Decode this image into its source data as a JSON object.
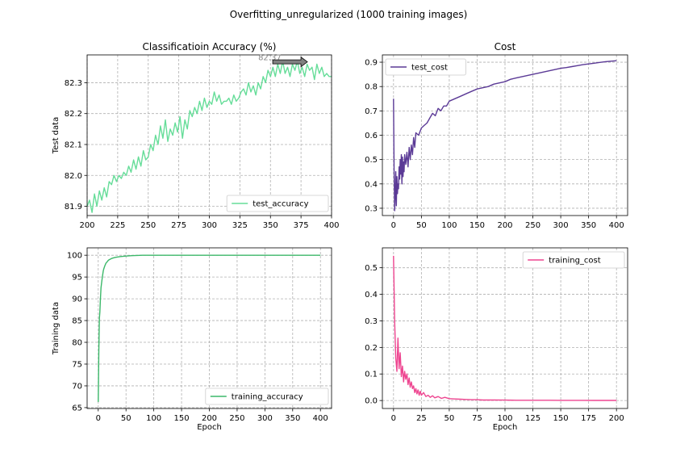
{
  "figure": {
    "suptitle": "Overfitting_unregularized (1000 training images)"
  },
  "chart_data": [
    {
      "id": "accuracy_test",
      "type": "line",
      "title": "Classificatioin Accuracy (%)",
      "xlabel": "",
      "ylabel": "Test data",
      "xlim": [
        200,
        400
      ],
      "ylim": [
        81.87,
        82.39
      ],
      "xticks": [
        200,
        225,
        250,
        275,
        300,
        325,
        350,
        375,
        400
      ],
      "yticks": [
        81.9,
        82.0,
        82.1,
        82.2,
        82.3
      ],
      "ytick_labels": [
        "81.9",
        "82.0",
        "82.1",
        "82.2",
        "82.3"
      ],
      "grid": true,
      "legend": "lower right",
      "annotation": {
        "text": "82.37",
        "x": 371,
        "y": 82.37,
        "arrow": true
      },
      "series": [
        {
          "name": "test_accuracy",
          "color": "#66dd99",
          "x": [
            200,
            202,
            204,
            206,
            208,
            210,
            212,
            214,
            216,
            218,
            220,
            222,
            224,
            226,
            228,
            230,
            232,
            234,
            236,
            238,
            240,
            242,
            244,
            246,
            248,
            250,
            252,
            254,
            256,
            258,
            260,
            262,
            264,
            266,
            268,
            270,
            272,
            274,
            276,
            278,
            280,
            282,
            284,
            286,
            288,
            290,
            292,
            294,
            296,
            298,
            300,
            302,
            304,
            306,
            308,
            310,
            312,
            314,
            316,
            318,
            320,
            322,
            324,
            326,
            328,
            330,
            332,
            334,
            336,
            338,
            340,
            342,
            344,
            346,
            348,
            350,
            352,
            354,
            356,
            358,
            360,
            362,
            364,
            366,
            368,
            370,
            372,
            374,
            376,
            378,
            380,
            382,
            384,
            386,
            388,
            390,
            392,
            394,
            396,
            398,
            400
          ],
          "values": [
            81.9,
            81.92,
            81.88,
            81.94,
            81.9,
            81.95,
            81.92,
            81.96,
            81.93,
            81.98,
            81.97,
            82.0,
            81.98,
            82.0,
            81.99,
            82.01,
            82.0,
            82.03,
            82.01,
            82.05,
            82.02,
            82.06,
            82.03,
            82.08,
            82.05,
            82.06,
            82.1,
            82.08,
            82.13,
            82.1,
            82.16,
            82.12,
            82.18,
            82.11,
            82.15,
            82.13,
            82.17,
            82.14,
            82.19,
            82.12,
            82.18,
            82.15,
            82.21,
            82.19,
            82.22,
            82.2,
            82.24,
            82.21,
            82.25,
            82.22,
            82.24,
            82.23,
            82.27,
            82.24,
            82.26,
            82.23,
            82.24,
            82.24,
            82.25,
            82.23,
            82.26,
            82.24,
            82.25,
            82.27,
            82.28,
            82.26,
            82.3,
            82.27,
            82.29,
            82.26,
            82.3,
            82.28,
            82.32,
            82.3,
            82.34,
            82.32,
            82.35,
            82.32,
            82.36,
            82.33,
            82.37,
            82.33,
            82.35,
            82.32,
            82.36,
            82.34,
            82.37,
            82.33,
            82.35,
            82.32,
            82.36,
            82.34,
            82.35,
            82.31,
            82.36,
            82.33,
            82.35,
            82.32,
            82.33,
            82.32,
            82.32
          ]
        }
      ]
    },
    {
      "id": "cost_test",
      "type": "line",
      "title": "Cost",
      "xlabel": "",
      "ylabel": "",
      "xlim": [
        -20,
        420
      ],
      "ylim": [
        0.27,
        0.93
      ],
      "xticks": [
        0,
        50,
        100,
        150,
        200,
        250,
        300,
        350,
        400
      ],
      "yticks": [
        0.3,
        0.4,
        0.5,
        0.6,
        0.7,
        0.8,
        0.9
      ],
      "ytick_labels": [
        "0.3",
        "0.4",
        "0.5",
        "0.6",
        "0.7",
        "0.8",
        "0.9"
      ],
      "grid": true,
      "legend": "upper left",
      "series": [
        {
          "name": "test_cost",
          "color": "#5b3a96",
          "x": [
            0,
            1,
            2,
            3,
            4,
            5,
            6,
            7,
            8,
            9,
            10,
            11,
            12,
            13,
            14,
            15,
            16,
            17,
            18,
            19,
            20,
            22,
            24,
            26,
            28,
            30,
            32,
            34,
            36,
            38,
            40,
            45,
            50,
            55,
            60,
            65,
            70,
            75,
            80,
            85,
            90,
            95,
            100,
            110,
            120,
            130,
            140,
            150,
            160,
            170,
            180,
            190,
            200,
            210,
            220,
            230,
            240,
            250,
            260,
            270,
            280,
            290,
            300,
            310,
            320,
            330,
            340,
            350,
            360,
            370,
            380,
            390,
            400
          ],
          "values": [
            0.75,
            0.46,
            0.29,
            0.35,
            0.45,
            0.31,
            0.43,
            0.36,
            0.4,
            0.38,
            0.47,
            0.42,
            0.5,
            0.44,
            0.52,
            0.4,
            0.51,
            0.43,
            0.49,
            0.45,
            0.52,
            0.48,
            0.53,
            0.47,
            0.55,
            0.5,
            0.56,
            0.52,
            0.59,
            0.55,
            0.61,
            0.6,
            0.63,
            0.64,
            0.65,
            0.67,
            0.69,
            0.68,
            0.71,
            0.7,
            0.72,
            0.72,
            0.74,
            0.75,
            0.76,
            0.77,
            0.78,
            0.79,
            0.795,
            0.8,
            0.81,
            0.815,
            0.82,
            0.83,
            0.835,
            0.84,
            0.845,
            0.85,
            0.855,
            0.86,
            0.865,
            0.87,
            0.875,
            0.878,
            0.882,
            0.886,
            0.89,
            0.893,
            0.896,
            0.899,
            0.902,
            0.904,
            0.906
          ]
        }
      ]
    },
    {
      "id": "accuracy_train",
      "type": "line",
      "title": "",
      "xlabel": "Epoch",
      "ylabel": "Training data",
      "xlim": [
        -20,
        420
      ],
      "ylim": [
        64.8,
        101.7
      ],
      "xticks": [
        0,
        50,
        100,
        150,
        200,
        250,
        300,
        350,
        400
      ],
      "yticks": [
        65,
        70,
        75,
        80,
        85,
        90,
        95,
        100
      ],
      "ytick_labels": [
        "65",
        "70",
        "75",
        "80",
        "85",
        "90",
        "95",
        "100"
      ],
      "grid": true,
      "legend": "lower right",
      "series": [
        {
          "name": "training_accuracy",
          "color": "#3cb86a",
          "x": [
            0,
            1,
            2,
            3,
            4,
            5,
            6,
            7,
            8,
            9,
            10,
            12,
            14,
            16,
            18,
            20,
            25,
            30,
            35,
            40,
            50,
            60,
            70,
            80,
            90,
            100,
            150,
            200,
            250,
            300,
            350,
            400
          ],
          "values": [
            66.3,
            78.0,
            85.5,
            87.0,
            90.0,
            92.5,
            93.6,
            94.6,
            95.5,
            96.4,
            96.9,
            97.6,
            98.2,
            98.5,
            98.8,
            99.0,
            99.3,
            99.5,
            99.6,
            99.7,
            99.8,
            99.9,
            99.95,
            100,
            100,
            100,
            100,
            100,
            100,
            100,
            100,
            100
          ]
        }
      ]
    },
    {
      "id": "cost_train",
      "type": "line",
      "title": "",
      "xlabel": "Epoch",
      "ylabel": "",
      "xlim": [
        -10,
        210
      ],
      "ylim": [
        -0.03,
        0.575
      ],
      "xticks": [
        0,
        25,
        50,
        75,
        100,
        125,
        150,
        175,
        200
      ],
      "yticks": [
        0.0,
        0.1,
        0.2,
        0.3,
        0.4,
        0.5
      ],
      "ytick_labels": [
        "0.0",
        "0.1",
        "0.2",
        "0.3",
        "0.4",
        "0.5"
      ],
      "grid": true,
      "legend": "upper right",
      "series": [
        {
          "name": "training_cost",
          "color": "#ee4590",
          "x": [
            0,
            1,
            2,
            3,
            4,
            5,
            6,
            7,
            8,
            9,
            10,
            11,
            12,
            13,
            14,
            15,
            16,
            17,
            18,
            19,
            20,
            21,
            22,
            23,
            24,
            25,
            27,
            29,
            31,
            33,
            35,
            37,
            40,
            43,
            46,
            50,
            55,
            60,
            65,
            70,
            75,
            80,
            90,
            100,
            110,
            120,
            130,
            140,
            150,
            160,
            170,
            180,
            190,
            200
          ],
          "values": [
            0.545,
            0.3,
            0.16,
            0.11,
            0.235,
            0.12,
            0.18,
            0.09,
            0.13,
            0.07,
            0.11,
            0.08,
            0.1,
            0.06,
            0.085,
            0.05,
            0.07,
            0.045,
            0.055,
            0.03,
            0.045,
            0.025,
            0.04,
            0.02,
            0.035,
            0.02,
            0.03,
            0.015,
            0.02,
            0.012,
            0.018,
            0.01,
            0.015,
            0.008,
            0.012,
            0.007,
            0.006,
            0.005,
            0.004,
            0.003,
            0.003,
            0.002,
            0.002,
            0.0015,
            0.001,
            0.001,
            0.001,
            0.001,
            0.0008,
            0.0007,
            0.0006,
            0.0005,
            0.0005,
            0.0005
          ]
        }
      ]
    }
  ]
}
